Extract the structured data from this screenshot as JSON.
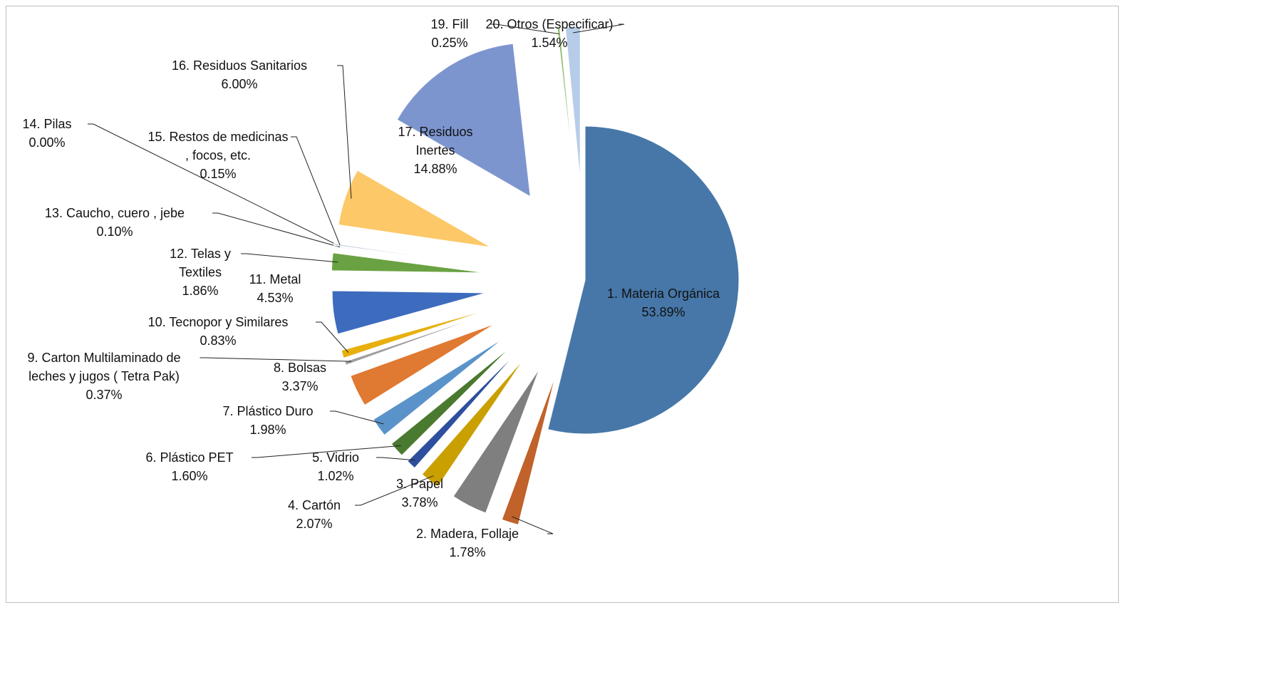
{
  "chart_data": {
    "type": "pie",
    "categories": [
      "1. Materia Orgánica",
      "2. Madera, Follaje",
      "3. Papel",
      "4. Cartón",
      "5. Vidrio",
      "6. Plástico PET",
      "7. Plástico Duro",
      "8. Bolsas",
      "9. Carton Multilaminado de leches y jugos ( Tetra Pak)",
      "10. Tecnopor y Similares",
      "11. Metal",
      "12. Telas y Textiles",
      "13. Caucho, cuero , jebe",
      "14. Pilas",
      "15. Restos de medicinas , focos, etc.",
      "16. Residuos Sanitarios",
      "17. Residuos Inertes",
      "19. Fill",
      "20. Otros (Especificar)"
    ],
    "values": [
      53.89,
      1.78,
      3.78,
      2.07,
      1.02,
      1.6,
      1.98,
      3.37,
      0.37,
      0.83,
      4.53,
      1.86,
      0.1,
      0.0,
      0.15,
      6.0,
      14.88,
      0.25,
      1.54
    ],
    "value_labels": [
      "53.89%",
      "1.78%",
      "3.78%",
      "2.07%",
      "1.02%",
      "1.60%",
      "1.98%",
      "3.37%",
      "0.37%",
      "0.83%",
      "4.53%",
      "1.86%",
      "0.10%",
      "0.00%",
      "0.15%",
      "6.00%",
      "14.88%",
      "0.25%",
      "1.54%"
    ],
    "colors": [
      "#4677a8",
      "#c0622a",
      "#7f7f7f",
      "#c9a000",
      "#2e4f9e",
      "#4a7a30",
      "#5a93c9",
      "#e07932",
      "#9e9e9e",
      "#e8b00f",
      "#3d6bbd",
      "#6aa243",
      "#a7b9d8",
      "#8c8c8c",
      "#b6c3d9",
      "#fdc868",
      "#7d95cf",
      "#8fbd6e",
      "#b7cce8"
    ]
  }
}
